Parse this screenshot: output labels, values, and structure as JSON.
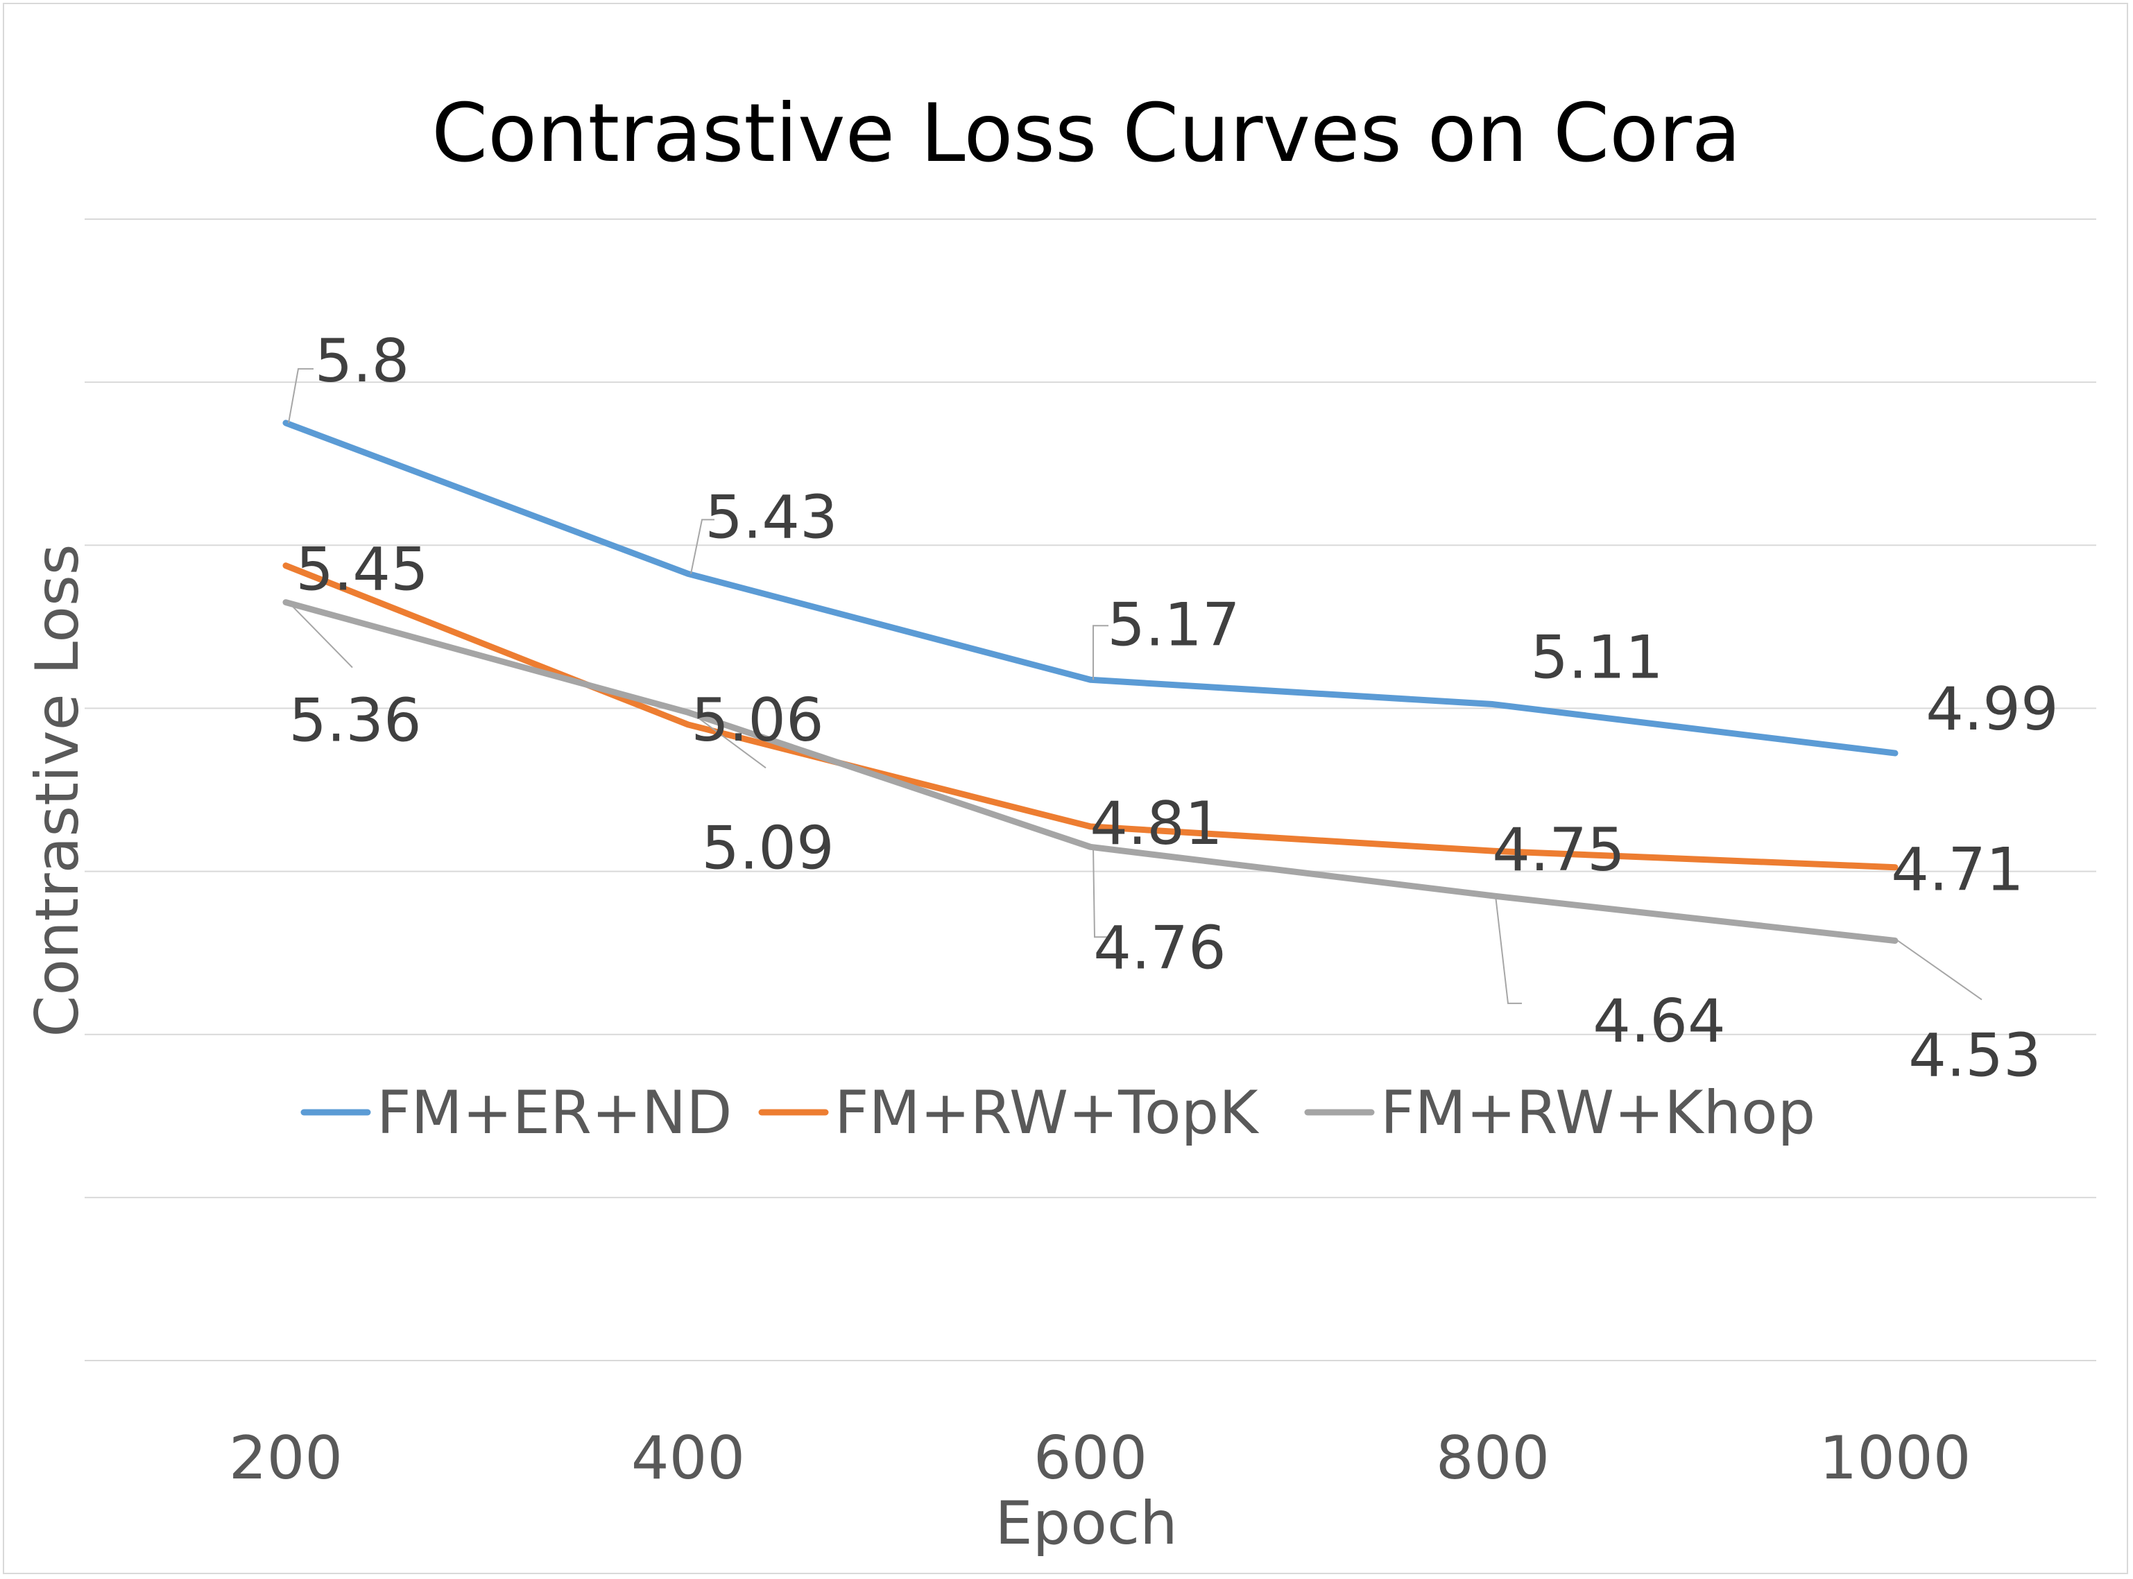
{
  "chart_data": {
    "type": "line",
    "title": "Contrastive Loss Curves on Cora",
    "xlabel": "Epoch",
    "ylabel": "Contrastive Loss",
    "categories": [
      "200",
      "400",
      "600",
      "800",
      "1000"
    ],
    "ylim": [
      3.5,
      6.3
    ],
    "grid": true,
    "legend_position": "inside-middle",
    "series": [
      {
        "name": "FM+ER+ND",
        "color": "#5b9bd5",
        "values": [
          5.8,
          5.43,
          5.17,
          5.11,
          4.99
        ]
      },
      {
        "name": "FM+RW+TopK",
        "color": "#ed7d31",
        "values": [
          5.45,
          5.06,
          4.81,
          4.75,
          4.71
        ]
      },
      {
        "name": "FM+RW+Khop",
        "color": "#a5a5a5",
        "values": [
          5.36,
          5.09,
          4.76,
          4.64,
          4.53
        ]
      }
    ],
    "data_labels": [
      {
        "series": 0,
        "point": 0,
        "text": "5.8"
      },
      {
        "series": 0,
        "point": 1,
        "text": "5.43"
      },
      {
        "series": 0,
        "point": 2,
        "text": "5.17"
      },
      {
        "series": 0,
        "point": 3,
        "text": "5.11"
      },
      {
        "series": 0,
        "point": 4,
        "text": "4.99"
      },
      {
        "series": 1,
        "point": 0,
        "text": "5.45"
      },
      {
        "series": 1,
        "point": 1,
        "text": "5.06"
      },
      {
        "series": 1,
        "point": 2,
        "text": "4.81"
      },
      {
        "series": 1,
        "point": 3,
        "text": "4.75"
      },
      {
        "series": 1,
        "point": 4,
        "text": "4.71"
      },
      {
        "series": 2,
        "point": 0,
        "text": "5.36"
      },
      {
        "series": 2,
        "point": 1,
        "text": "5.09"
      },
      {
        "series": 2,
        "point": 2,
        "text": "4.76"
      },
      {
        "series": 2,
        "point": 3,
        "text": "4.64"
      },
      {
        "series": 2,
        "point": 4,
        "text": "4.53"
      }
    ]
  }
}
